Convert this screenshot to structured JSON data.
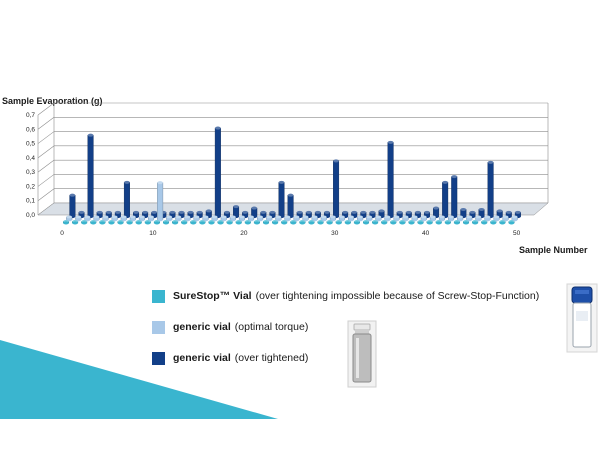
{
  "chart_data": {
    "type": "bar",
    "title": "",
    "ylabel": "Sample Evaporation (g)",
    "xlabel": "Sample Number",
    "ylim": [
      0,
      0.7
    ],
    "yticks": [
      "0,0",
      "0,1",
      "0,2",
      "0,3",
      "0,4",
      "0,5",
      "0,6",
      "0,7"
    ],
    "xticks": [
      "0",
      "10",
      "20",
      "30",
      "40",
      "50"
    ],
    "grid": true,
    "series": [
      {
        "name": "SureStop™ Vial",
        "color": "#3ab5cf",
        "values": [
          0.01,
          0.01,
          0.01,
          0.01,
          0.01,
          0.01,
          0.01,
          0.01,
          0.01,
          0.01,
          0.01,
          0.01,
          0.01,
          0.01,
          0.01,
          0.01,
          0.01,
          0.01,
          0.01,
          0.01,
          0.01,
          0.01,
          0.01,
          0.01,
          0.01,
          0.01,
          0.01,
          0.01,
          0.01,
          0.01,
          0.01,
          0.01,
          0.01,
          0.01,
          0.01,
          0.01,
          0.01,
          0.01,
          0.01,
          0.01,
          0.01,
          0.01,
          0.01,
          0.01,
          0.01,
          0.01,
          0.01,
          0.01,
          0.01,
          0.01
        ]
      },
      {
        "name": "generic vial",
        "color": "#a8c8e8",
        "values": [
          0.02,
          0.02,
          0.02,
          0.02,
          0.02,
          0.02,
          0.02,
          0.02,
          0.02,
          0.02,
          0.26,
          0.02,
          0.02,
          0.02,
          0.02,
          0.02,
          0.02,
          0.02,
          0.02,
          0.02,
          0.02,
          0.02,
          0.02,
          0.02,
          0.02,
          0.02,
          0.02,
          0.02,
          0.02,
          0.02,
          0.02,
          0.02,
          0.02,
          0.02,
          0.02,
          0.02,
          0.02,
          0.02,
          0.02,
          0.02,
          0.02,
          0.02,
          0.02,
          0.02,
          0.02,
          0.02,
          0.02,
          0.02,
          0.02,
          0.02
        ]
      },
      {
        "name": "generic vial",
        "color": "#123f88",
        "values": [
          0.15,
          0.03,
          0.57,
          0.03,
          0.03,
          0.03,
          0.24,
          0.03,
          0.03,
          0.03,
          0.03,
          0.03,
          0.03,
          0.03,
          0.03,
          0.04,
          0.62,
          0.03,
          0.07,
          0.03,
          0.06,
          0.03,
          0.03,
          0.24,
          0.15,
          0.03,
          0.03,
          0.03,
          0.03,
          0.39,
          0.03,
          0.03,
          0.03,
          0.03,
          0.04,
          0.52,
          0.03,
          0.03,
          0.03,
          0.03,
          0.06,
          0.24,
          0.28,
          0.05,
          0.03,
          0.05,
          0.38,
          0.04,
          0.03,
          0.03
        ]
      }
    ]
  },
  "legend": {
    "items": [
      {
        "bold": "SureStop™ Vial",
        "rest": "(over tightening impossible because of Screw-Stop-Function)",
        "color": "#3ab5cf"
      },
      {
        "bold": "generic vial",
        "rest": "(optimal torque)",
        "color": "#a8c8e8"
      },
      {
        "bold": "generic vial",
        "rest": "(over tightened)",
        "color": "#123f88"
      }
    ]
  },
  "decor": {
    "accent_color": "#3ab5cf"
  }
}
